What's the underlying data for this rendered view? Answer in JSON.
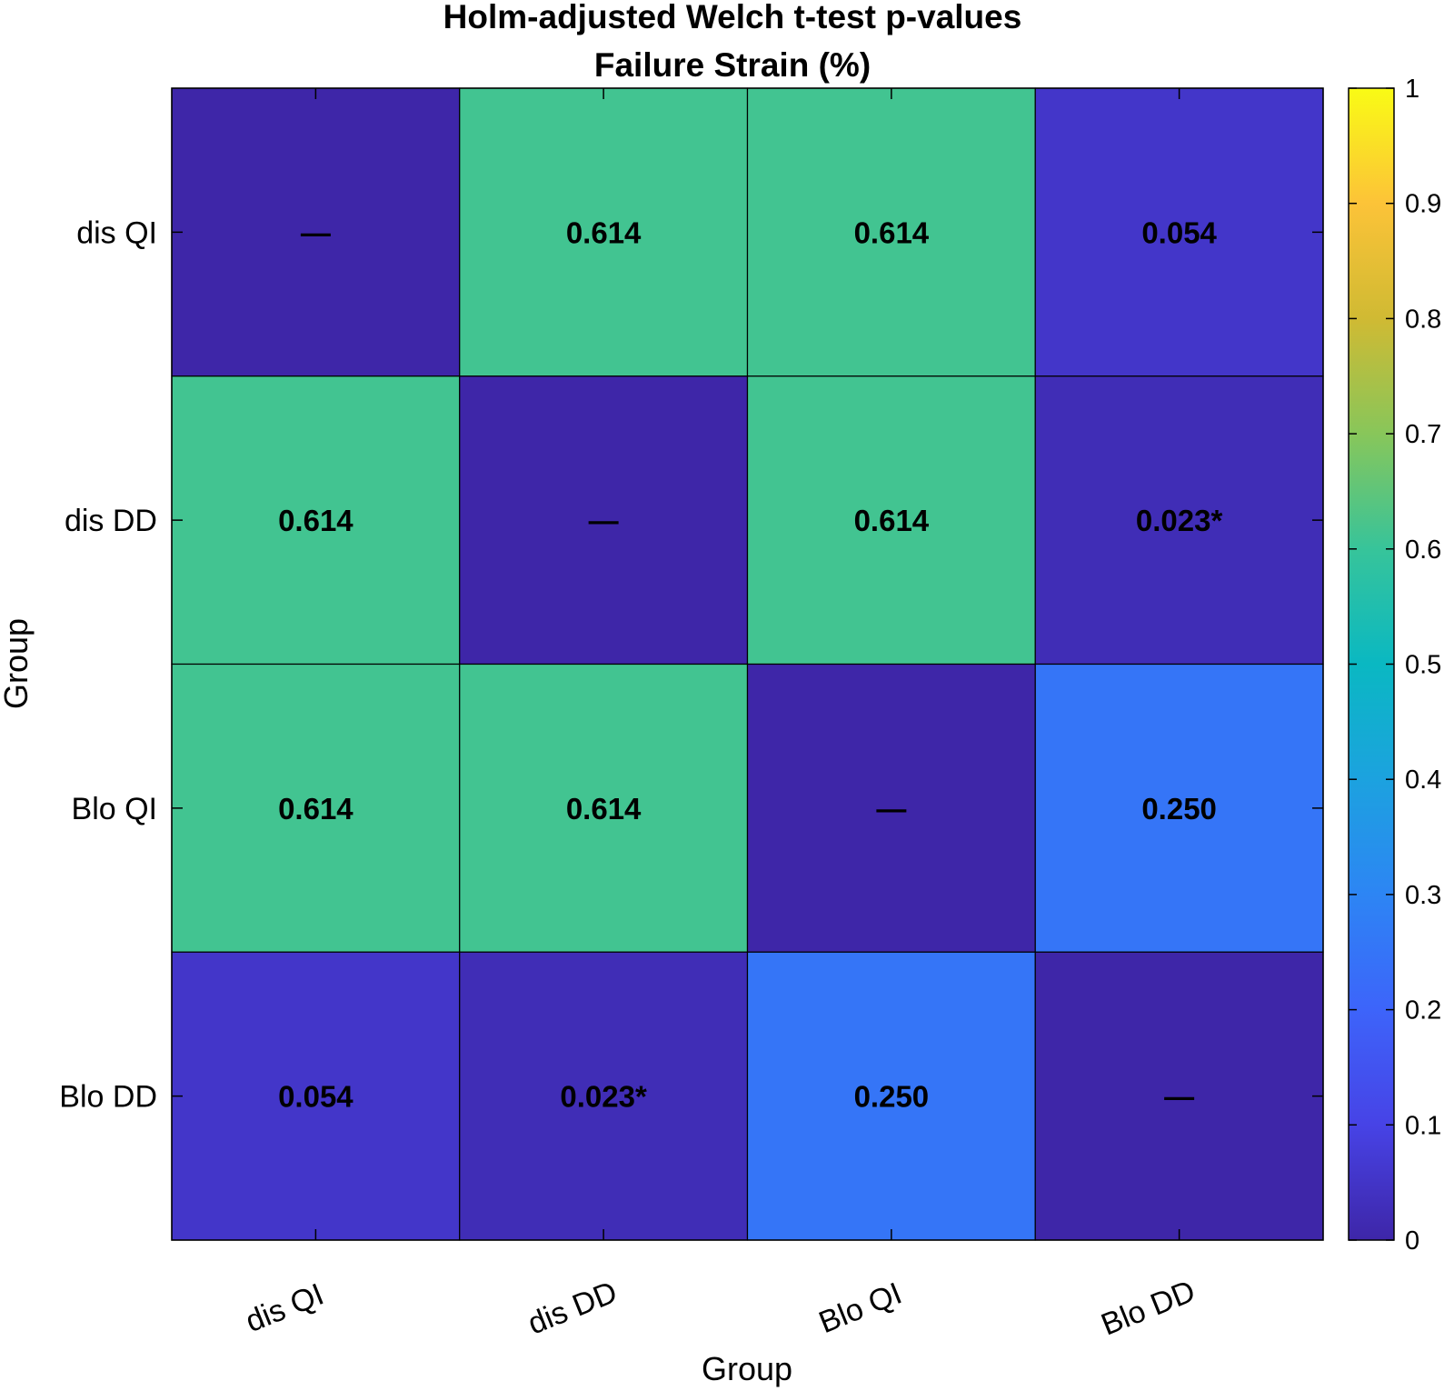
{
  "chart_data": {
    "type": "heatmap",
    "title": "Holm-adjusted Welch t-test p-values",
    "subtitle": "Failure Strain (%)",
    "xlabel": "Group",
    "ylabel": "Group",
    "x_categories": [
      "dis QI",
      "dis DD",
      "Blo QI",
      "Blo DD"
    ],
    "y_categories": [
      "dis QI",
      "dis DD",
      "Blo QI",
      "Blo DD"
    ],
    "values": [
      [
        0,
        0.614,
        0.614,
        0.054
      ],
      [
        0.614,
        0,
        0.614,
        0.023
      ],
      [
        0.614,
        0.614,
        0,
        0.25
      ],
      [
        0.054,
        0.023,
        0.25,
        0
      ]
    ],
    "labels": [
      [
        "—",
        "0.614",
        "0.614",
        "0.054"
      ],
      [
        "0.614",
        "—",
        "0.614",
        "0.023*"
      ],
      [
        "0.614",
        "0.614",
        "—",
        "0.250"
      ],
      [
        "0.054",
        "0.023*",
        "0.250",
        "—"
      ]
    ],
    "colorbar": {
      "range": [
        0,
        1
      ],
      "ticks": [
        "0",
        "0.1",
        "0.2",
        "0.3",
        "0.4",
        "0.5",
        "0.6",
        "0.7",
        "0.8",
        "0.9",
        "1"
      ],
      "colormap": "parula"
    }
  }
}
